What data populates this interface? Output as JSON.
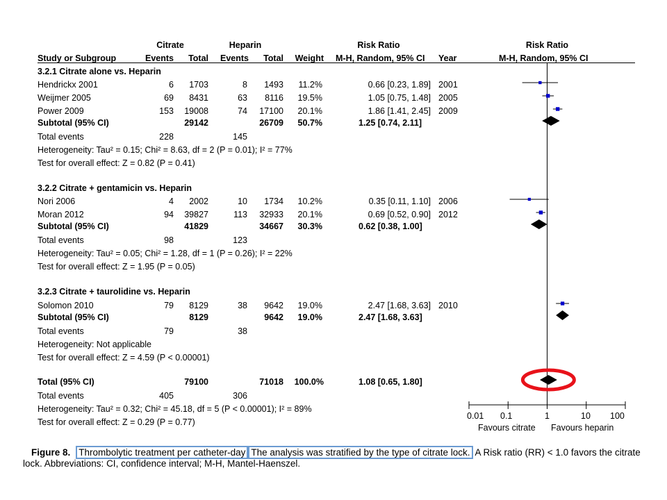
{
  "header": {
    "group1": "Citrate",
    "group2": "Heparin",
    "rr_title": "Risk Ratio",
    "rr_title_plot": "Risk Ratio",
    "col_study": "Study or Subgroup",
    "col_events1": "Events",
    "col_total1": "Total",
    "col_events2": "Events",
    "col_total2": "Total",
    "col_weight": "Weight",
    "col_mh": "M-H, Random, 95% CI",
    "col_year": "Year",
    "col_mh_plot": "M-H, Random, 95% CI"
  },
  "subgroups": [
    {
      "title": "3.2.1 Citrate alone vs. Heparin",
      "studies": [
        {
          "name": "Hendrickx 2001",
          "e1": "6",
          "t1": "1703",
          "e2": "8",
          "t2": "1493",
          "weight": "11.2%",
          "ci": "0.66 [0.23, 1.89]",
          "year": "2001"
        },
        {
          "name": "Weijmer 2005",
          "e1": "69",
          "t1": "8431",
          "e2": "63",
          "t2": "8116",
          "weight": "19.5%",
          "ci": "1.05 [0.75, 1.48]",
          "year": "2005"
        },
        {
          "name": "Power 2009",
          "e1": "153",
          "t1": "19008",
          "e2": "74",
          "t2": "17100",
          "weight": "20.1%",
          "ci": "1.86 [1.41, 2.45]",
          "year": "2009"
        }
      ],
      "subtotal": {
        "label": "Subtotal (95% CI)",
        "t1": "29142",
        "t2": "26709",
        "weight": "50.7%",
        "ci": "1.25 [0.74, 2.11]"
      },
      "total_events": {
        "label": "Total events",
        "e1": "228",
        "e2": "145"
      },
      "heterogeneity": "Heterogeneity: Tau² = 0.15; Chi² = 8.63, df = 2 (P = 0.01); I² = 77%",
      "overall": "Test for overall effect: Z = 0.82 (P = 0.41)"
    },
    {
      "title": "3.2.2 Citrate + gentamicin vs. Heparin",
      "studies": [
        {
          "name": "Nori 2006",
          "e1": "4",
          "t1": "2002",
          "e2": "10",
          "t2": "1734",
          "weight": "10.2%",
          "ci": "0.35 [0.11, 1.10]",
          "year": "2006"
        },
        {
          "name": "Moran 2012",
          "e1": "94",
          "t1": "39827",
          "e2": "113",
          "t2": "32933",
          "weight": "20.1%",
          "ci": "0.69 [0.52, 0.90]",
          "year": "2012"
        }
      ],
      "subtotal": {
        "label": "Subtotal (95% CI)",
        "t1": "41829",
        "t2": "34667",
        "weight": "30.3%",
        "ci": "0.62 [0.38, 1.00]"
      },
      "total_events": {
        "label": "Total events",
        "e1": "98",
        "e2": "123"
      },
      "heterogeneity": "Heterogeneity: Tau² = 0.05; Chi² = 1.28, df = 1 (P = 0.26); I² = 22%",
      "overall": "Test for overall effect: Z = 1.95 (P = 0.05)"
    },
    {
      "title": "3.2.3 Citrate + taurolidine vs. Heparin",
      "studies": [
        {
          "name": "Solomon 2010",
          "e1": "79",
          "t1": "8129",
          "e2": "38",
          "t2": "9642",
          "weight": "19.0%",
          "ci": "2.47 [1.68, 3.63]",
          "year": "2010"
        }
      ],
      "subtotal": {
        "label": "Subtotal (95% CI)",
        "t1": "8129",
        "t2": "9642",
        "weight": "19.0%",
        "ci": "2.47 [1.68, 3.63]"
      },
      "total_events": {
        "label": "Total events",
        "e1": "79",
        "e2": "38"
      },
      "heterogeneity": "Heterogeneity: Not applicable",
      "overall": "Test for overall effect: Z = 4.59 (P < 0.00001)"
    }
  ],
  "total": {
    "label": "Total (95% CI)",
    "t1": "79100",
    "t2": "71018",
    "weight": "100.0%",
    "ci": "1.08 [0.65, 1.80]",
    "events_label": "Total events",
    "e1": "405",
    "e2": "306",
    "heterogeneity": "Heterogeneity: Tau² = 0.32; Chi² = 45.18, df = 5 (P < 0.00001); I² = 89%",
    "overall": "Test for overall effect: Z = 0.29 (P = 0.77)"
  },
  "axis": {
    "ticks": [
      {
        "value": 0.01,
        "label": "0.01"
      },
      {
        "value": 0.1,
        "label": "0.1"
      },
      {
        "value": 1,
        "label": "1"
      },
      {
        "value": 10,
        "label": "10"
      },
      {
        "value": 100,
        "label": "100"
      }
    ],
    "favours_left": "Favours citrate",
    "favours_right": "Favours heparin"
  },
  "chart_data": {
    "type": "forest",
    "x_scale": "log",
    "xlim": [
      0.01,
      100
    ],
    "null_line": 1,
    "studies": [
      {
        "name": "Hendrickx 2001",
        "rr": 0.66,
        "lo": 0.23,
        "hi": 1.89,
        "weight": 11.2
      },
      {
        "name": "Weijmer 2005",
        "rr": 1.05,
        "lo": 0.75,
        "hi": 1.48,
        "weight": 19.5
      },
      {
        "name": "Power 2009",
        "rr": 1.86,
        "lo": 1.41,
        "hi": 2.45,
        "weight": 20.1
      },
      {
        "name": "Nori 2006",
        "rr": 0.35,
        "lo": 0.11,
        "hi": 1.1,
        "weight": 10.2
      },
      {
        "name": "Moran 2012",
        "rr": 0.69,
        "lo": 0.52,
        "hi": 0.9,
        "weight": 20.1
      },
      {
        "name": "Solomon 2010",
        "rr": 2.47,
        "lo": 1.68,
        "hi": 3.63,
        "weight": 19.0
      }
    ],
    "diamonds": [
      {
        "name": "Subtotal 3.2.1",
        "rr": 1.25,
        "lo": 0.74,
        "hi": 2.11
      },
      {
        "name": "Subtotal 3.2.2",
        "rr": 0.62,
        "lo": 0.38,
        "hi": 1.0
      },
      {
        "name": "Subtotal 3.2.3",
        "rr": 2.47,
        "lo": 1.68,
        "hi": 3.63
      },
      {
        "name": "Total",
        "rr": 1.08,
        "lo": 0.65,
        "hi": 1.8
      }
    ],
    "highlight": "Total",
    "colors": {
      "square": "#0000cc",
      "diamond": "#000000",
      "highlight_ellipse": "#e8121a"
    }
  },
  "caption": {
    "label": "Figure 8.",
    "boxed1": "Thrombolytic treatment per catheter-day",
    "boxed2": "The analysis was stratified by the type of citrate lock.",
    "rest": " A Risk ratio (RR) < 1.0 favors the citrate lock. Abbreviations: CI, confidence interval; M-H, Mantel-Haenszel.",
    "box_color": "#6b9bd2"
  }
}
